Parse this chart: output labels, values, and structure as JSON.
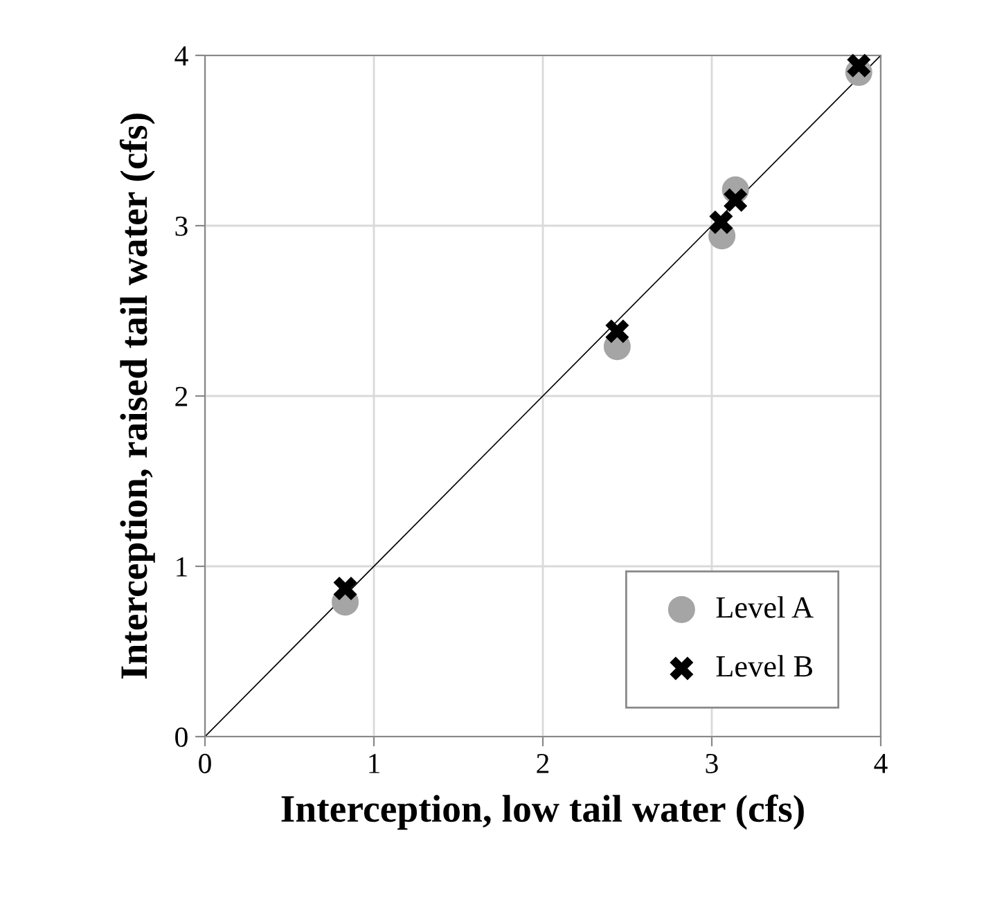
{
  "chart_data": {
    "type": "scatter",
    "xlabel": "Interception, low tail water (cfs)",
    "ylabel": "Interception, raised tail water (cfs)",
    "xlim": [
      0,
      4
    ],
    "ylim": [
      0,
      4
    ],
    "xticks": [
      0,
      1,
      2,
      3,
      4
    ],
    "yticks": [
      0,
      1,
      2,
      3,
      4
    ],
    "grid": true,
    "legend": "bottom right",
    "series": [
      {
        "name": "Level A",
        "color": "#a5a5a5",
        "marker": "circle",
        "x": [
          0.83,
          2.44,
          3.06,
          3.14,
          3.87
        ],
        "values": [
          0.79,
          2.29,
          2.94,
          3.21,
          3.9
        ]
      },
      {
        "name": "Level B",
        "color": "#000000",
        "marker": "cross",
        "x": [
          0.83,
          2.44,
          3.055,
          3.14,
          3.87
        ],
        "values": [
          0.87,
          2.38,
          3.02,
          3.15,
          3.94
        ]
      },
      {
        "type": "line",
        "color": "#000000",
        "marker": "none",
        "x": [
          0,
          4
        ],
        "values": [
          0,
          4
        ]
      }
    ]
  }
}
